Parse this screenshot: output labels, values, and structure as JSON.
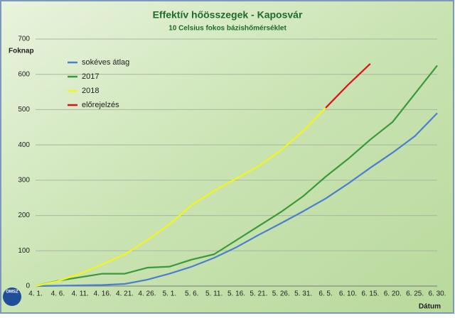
{
  "chart_data": {
    "type": "line",
    "title": "Effektív hőösszegek - Kaposvár",
    "subtitle": "10 Celsius fokos bázishőmérséklet",
    "y_label": "Foknap",
    "x_label": "Dátum",
    "logo_text": "OMSZ",
    "categories": [
      "4. 1.",
      "4. 6.",
      "4. 11.",
      "4. 16.",
      "4. 21.",
      "4. 26.",
      "5. 1.",
      "5. 6.",
      "5. 11.",
      "5. 16.",
      "5. 21.",
      "5. 26.",
      "5. 31.",
      "6. 5.",
      "6. 10.",
      "6. 15.",
      "6. 20.",
      "6. 25.",
      "6. 30."
    ],
    "series": [
      {
        "name": "sokéves átlag",
        "color": "#4a7fd0",
        "values": [
          0,
          1,
          2,
          3,
          6,
          18,
          35,
          55,
          80,
          110,
          145,
          178,
          212,
          248,
          290,
          335,
          378,
          425,
          490
        ]
      },
      {
        "name": "2017",
        "color": "#3a9a3a",
        "values": [
          0,
          15,
          25,
          35,
          35,
          52,
          55,
          75,
          90,
          130,
          170,
          210,
          255,
          310,
          360,
          415,
          465,
          545,
          625
        ]
      },
      {
        "name": "2018",
        "color": "#f4f420",
        "values": [
          0,
          14,
          35,
          62,
          90,
          130,
          175,
          230,
          270,
          305,
          340,
          385,
          440,
          505,
          null,
          null,
          null,
          null,
          null
        ]
      },
      {
        "name": "előrejelzés",
        "color": "#e01010",
        "values": [
          null,
          null,
          null,
          null,
          null,
          null,
          null,
          null,
          null,
          null,
          null,
          null,
          null,
          505,
          570,
          630,
          null,
          null,
          null
        ]
      }
    ],
    "ylim": [
      0,
      700
    ],
    "yticks": [
      0,
      100,
      200,
      300,
      400,
      500,
      600,
      700
    ],
    "grid": true,
    "legend": "upper-left"
  }
}
